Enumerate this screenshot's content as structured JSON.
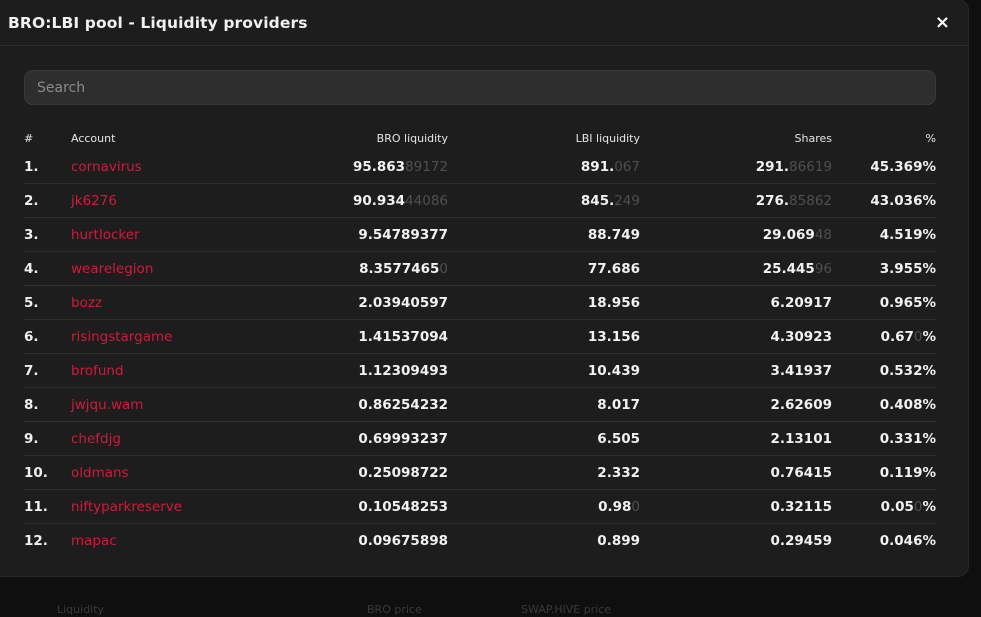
{
  "modal": {
    "title": "BRO:LBI pool - Liquidity providers",
    "close_icon": "×"
  },
  "search": {
    "placeholder": "Search",
    "value": ""
  },
  "table": {
    "headers": {
      "index": "#",
      "account": "Account",
      "bro_liquidity": "BRO liquidity",
      "lbi_liquidity": "LBI liquidity",
      "shares": "Shares",
      "percent": "%"
    },
    "rows": [
      {
        "idx": "1.",
        "account": "cornavirus",
        "bro": [
          "95.863",
          "89172"
        ],
        "lbi": [
          "891.",
          "067"
        ],
        "shares": [
          "291.",
          "86619"
        ],
        "pct": [
          "45.369%",
          ""
        ]
      },
      {
        "idx": "2.",
        "account": "jk6276",
        "bro": [
          "90.934",
          "44086"
        ],
        "lbi": [
          "845.",
          "249"
        ],
        "shares": [
          "276.",
          "85862"
        ],
        "pct": [
          "43.036%",
          ""
        ]
      },
      {
        "idx": "3.",
        "account": "hurtlocker",
        "bro": [
          "9.54789377",
          ""
        ],
        "lbi": [
          "88.749",
          ""
        ],
        "shares": [
          "29.069",
          "48"
        ],
        "pct": [
          "4.519%",
          ""
        ]
      },
      {
        "idx": "4.",
        "account": "wearelegion",
        "bro": [
          "8.3577465",
          "0"
        ],
        "lbi": [
          "77.686",
          ""
        ],
        "shares": [
          "25.445",
          "96"
        ],
        "pct": [
          "3.955%",
          ""
        ]
      },
      {
        "idx": "5.",
        "account": "bozz",
        "bro": [
          "2.03940597",
          ""
        ],
        "lbi": [
          "18.956",
          ""
        ],
        "shares": [
          "6.20917",
          ""
        ],
        "pct": [
          "0.965%",
          ""
        ]
      },
      {
        "idx": "6.",
        "account": "risingstargame",
        "bro": [
          "1.41537094",
          ""
        ],
        "lbi": [
          "13.156",
          ""
        ],
        "shares": [
          "4.30923",
          ""
        ],
        "pct": [
          "0.67",
          "0",
          "%"
        ]
      },
      {
        "idx": "7.",
        "account": "brofund",
        "bro": [
          "1.12309493",
          ""
        ],
        "lbi": [
          "10.439",
          ""
        ],
        "shares": [
          "3.41937",
          ""
        ],
        "pct": [
          "0.532%",
          ""
        ]
      },
      {
        "idx": "8.",
        "account": "jwjqu.wam",
        "bro": [
          "0.86254232",
          ""
        ],
        "lbi": [
          "8.017",
          ""
        ],
        "shares": [
          "2.62609",
          ""
        ],
        "pct": [
          "0.408%",
          ""
        ]
      },
      {
        "idx": "9.",
        "account": "chefdjg",
        "bro": [
          "0.69993237",
          ""
        ],
        "lbi": [
          "6.505",
          ""
        ],
        "shares": [
          "2.13101",
          ""
        ],
        "pct": [
          "0.331%",
          ""
        ]
      },
      {
        "idx": "10.",
        "account": "oldmans",
        "bro": [
          "0.25098722",
          ""
        ],
        "lbi": [
          "2.332",
          ""
        ],
        "shares": [
          "0.76415",
          ""
        ],
        "pct": [
          "0.119%",
          ""
        ]
      },
      {
        "idx": "11.",
        "account": "niftyparkreserve",
        "bro": [
          "0.10548253",
          ""
        ],
        "lbi": [
          "0.98",
          "0"
        ],
        "shares": [
          "0.32115",
          ""
        ],
        "pct": [
          "0.05",
          "0",
          "%"
        ]
      },
      {
        "idx": "12.",
        "account": "mapac",
        "bro": [
          "0.09675898",
          ""
        ],
        "lbi": [
          "0.899",
          ""
        ],
        "shares": [
          "0.29459",
          ""
        ],
        "pct": [
          "0.046%",
          ""
        ]
      }
    ]
  },
  "background_labels": {
    "liquidity": "Liquidity",
    "bro_price": "BRO price",
    "swap_hive_price": "SWAP.HIVE price"
  },
  "colors": {
    "account_link": "#d11a3d",
    "modal_bg": "#1d1d1d",
    "page_bg": "#0f0f0f"
  }
}
